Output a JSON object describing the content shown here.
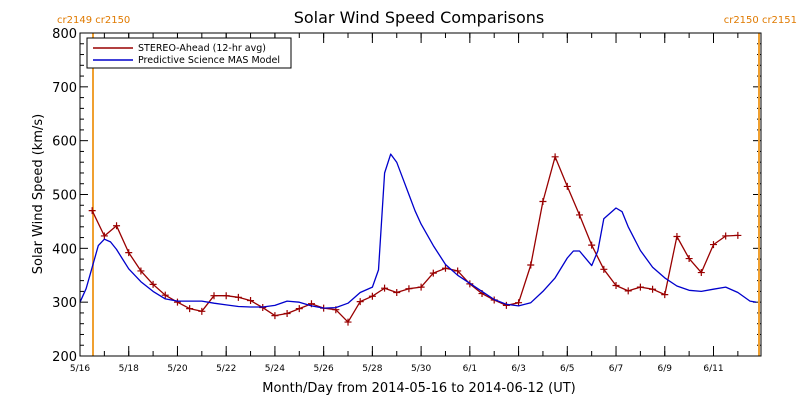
{
  "chart_data": {
    "type": "line",
    "title": "Solar Wind Speed Comparisons",
    "xlabel": "Month/Day from 2014-05-16 to 2014-06-12 (UT)",
    "ylabel": "Solar Wind Speed (km/s)",
    "x_start_date": "2014-05-16",
    "xlim": [
      "2014-05-16",
      "2014-06-12"
    ],
    "ylim": [
      200,
      800
    ],
    "y_ticks": [
      200,
      300,
      400,
      500,
      600,
      700,
      800
    ],
    "x_ticks": [
      {
        "date": "2014-05-16",
        "label": "5/16"
      },
      {
        "date": "2014-05-18",
        "label": "5/18"
      },
      {
        "date": "2014-05-20",
        "label": "5/20"
      },
      {
        "date": "2014-05-22",
        "label": "5/22"
      },
      {
        "date": "2014-05-24",
        "label": "5/24"
      },
      {
        "date": "2014-05-26",
        "label": "5/26"
      },
      {
        "date": "2014-05-28",
        "label": "5/28"
      },
      {
        "date": "2014-05-30",
        "label": "5/30"
      },
      {
        "date": "2014-06-01",
        "label": "6/1"
      },
      {
        "date": "2014-06-03",
        "label": "6/3"
      },
      {
        "date": "2014-06-05",
        "label": "6/5"
      },
      {
        "date": "2014-06-07",
        "label": "6/7"
      },
      {
        "date": "2014-06-09",
        "label": "6/9"
      },
      {
        "date": "2014-06-11",
        "label": "6/11"
      }
    ],
    "rotation_labels": {
      "left": "cr2149 cr2150",
      "right": "cr2150 cr2151"
    },
    "legend_position": "top-left",
    "series": [
      {
        "name": "STEREO-Ahead (12-hr avg)",
        "color": "#990000",
        "marker": "plus",
        "x": [
          "2014-05-16 12:00",
          "2014-05-17 00:00",
          "2014-05-17 12:00",
          "2014-05-18 00:00",
          "2014-05-18 12:00",
          "2014-05-19 00:00",
          "2014-05-19 12:00",
          "2014-05-20 00:00",
          "2014-05-20 12:00",
          "2014-05-21 00:00",
          "2014-05-21 12:00",
          "2014-05-22 00:00",
          "2014-05-22 12:00",
          "2014-05-23 00:00",
          "2014-05-23 12:00",
          "2014-05-24 00:00",
          "2014-05-24 12:00",
          "2014-05-25 00:00",
          "2014-05-25 12:00",
          "2014-05-26 00:00",
          "2014-05-26 12:00",
          "2014-05-27 00:00",
          "2014-05-27 12:00",
          "2014-05-28 00:00",
          "2014-05-28 12:00",
          "2014-05-29 00:00",
          "2014-05-29 12:00",
          "2014-05-30 00:00",
          "2014-05-30 12:00",
          "2014-05-31 00:00",
          "2014-05-31 12:00",
          "2014-06-01 00:00",
          "2014-06-01 12:00",
          "2014-06-02 00:00",
          "2014-06-02 12:00",
          "2014-06-03 00:00",
          "2014-06-03 12:00",
          "2014-06-04 00:00",
          "2014-06-04 12:00",
          "2014-06-05 00:00",
          "2014-06-05 12:00",
          "2014-06-06 00:00",
          "2014-06-06 12:00",
          "2014-06-07 00:00",
          "2014-06-07 12:00",
          "2014-06-08 00:00",
          "2014-06-08 12:00",
          "2014-06-09 00:00",
          "2014-06-09 12:00",
          "2014-06-10 00:00",
          "2014-06-10 12:00",
          "2014-06-11 00:00",
          "2014-06-11 12:00",
          "2014-06-12 00:00"
        ],
        "values": [
          470,
          423,
          442,
          392,
          358,
          333,
          313,
          300,
          288,
          283,
          312,
          312,
          309,
          303,
          290,
          275,
          279,
          288,
          297,
          289,
          286,
          263,
          301,
          311,
          326,
          318,
          325,
          328,
          354,
          363,
          358,
          334,
          316,
          304,
          294,
          299,
          369,
          487,
          570,
          515,
          462,
          406,
          361,
          331,
          321,
          328,
          324,
          314,
          422,
          381,
          355,
          407,
          423,
          424
        ]
      },
      {
        "name": "Predictive Science MAS Model",
        "color": "#0000cc",
        "marker": "none",
        "x": [
          "2014-05-16 00:00",
          "2014-05-16 06:00",
          "2014-05-16 12:00",
          "2014-05-16 18:00",
          "2014-05-17 00:00",
          "2014-05-17 06:00",
          "2014-05-17 12:00",
          "2014-05-17 18:00",
          "2014-05-18 00:00",
          "2014-05-18 12:00",
          "2014-05-19 00:00",
          "2014-05-19 12:00",
          "2014-05-20 00:00",
          "2014-05-20 12:00",
          "2014-05-21 00:00",
          "2014-05-21 12:00",
          "2014-05-22 00:00",
          "2014-05-22 12:00",
          "2014-05-23 00:00",
          "2014-05-23 12:00",
          "2014-05-24 00:00",
          "2014-05-24 12:00",
          "2014-05-25 00:00",
          "2014-05-25 12:00",
          "2014-05-26 00:00",
          "2014-05-26 12:00",
          "2014-05-27 00:00",
          "2014-05-27 12:00",
          "2014-05-28 00:00",
          "2014-05-28 06:00",
          "2014-05-28 12:00",
          "2014-05-28 18:00",
          "2014-05-29 00:00",
          "2014-05-29 06:00",
          "2014-05-29 12:00",
          "2014-05-29 18:00",
          "2014-05-30 00:00",
          "2014-05-30 12:00",
          "2014-05-31 00:00",
          "2014-05-31 12:00",
          "2014-06-01 00:00",
          "2014-06-01 12:00",
          "2014-06-02 00:00",
          "2014-06-02 12:00",
          "2014-06-03 00:00",
          "2014-06-03 12:00",
          "2014-06-04 00:00",
          "2014-06-04 12:00",
          "2014-06-05 00:00",
          "2014-06-05 06:00",
          "2014-06-05 12:00",
          "2014-06-06 00:00",
          "2014-06-06 06:00",
          "2014-06-06 12:00",
          "2014-06-07 00:00",
          "2014-06-07 06:00",
          "2014-06-07 12:00",
          "2014-06-08 00:00",
          "2014-06-08 12:00",
          "2014-06-09 00:00",
          "2014-06-09 12:00",
          "2014-06-10 00:00",
          "2014-06-10 12:00",
          "2014-06-11 00:00",
          "2014-06-11 12:00",
          "2014-06-12 00:00",
          "2014-06-12 12:00",
          "2014-06-12 18:00"
        ],
        "values": [
          300,
          325,
          365,
          405,
          417,
          412,
          398,
          380,
          362,
          338,
          320,
          306,
          302,
          302,
          302,
          298,
          295,
          292,
          291,
          291,
          294,
          302,
          300,
          293,
          289,
          290,
          298,
          318,
          328,
          360,
          540,
          575,
          560,
          530,
          500,
          470,
          445,
          405,
          370,
          350,
          335,
          320,
          305,
          296,
          293,
          299,
          320,
          345,
          382,
          395,
          395,
          368,
          395,
          455,
          475,
          468,
          440,
          396,
          365,
          345,
          330,
          322,
          320,
          324,
          328,
          318,
          302,
          300
        ]
      }
    ]
  }
}
